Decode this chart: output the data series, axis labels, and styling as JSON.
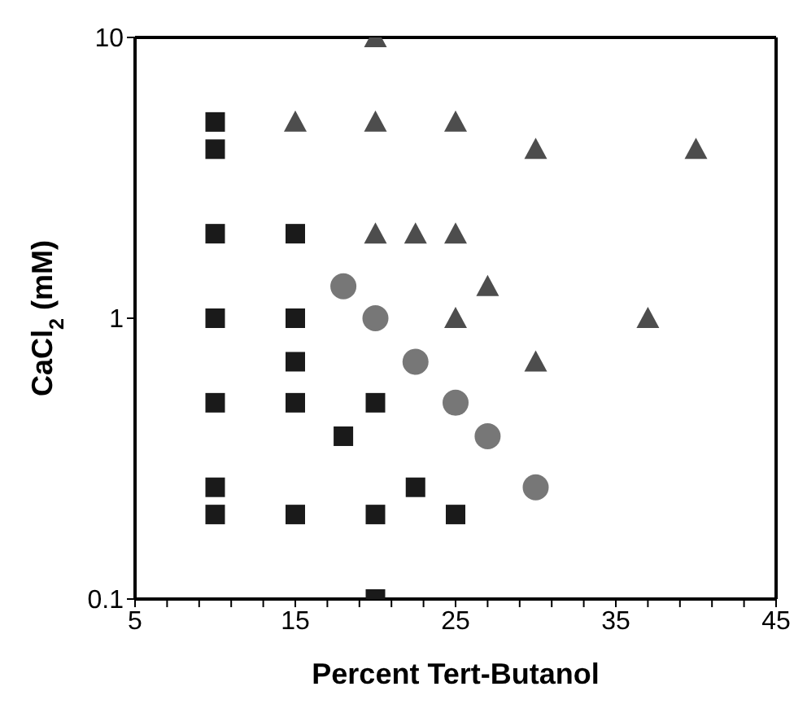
{
  "chart_data": {
    "type": "scatter",
    "xlabel": "Percent Tert-Butanol",
    "ylabel": "CaCl$_{2}$ (mM)",
    "log": "y",
    "grid": false,
    "xlim": [
      5,
      45
    ],
    "xticks": [
      5,
      {
        "value": 7,
        "label": null
      },
      {
        "value": 9,
        "label": null
      },
      {
        "value": 11,
        "label": null
      },
      {
        "value": 13,
        "label": null
      },
      15,
      {
        "value": 17,
        "label": null
      },
      {
        "value": 19,
        "label": null
      },
      {
        "value": 21,
        "label": null
      },
      {
        "value": 23,
        "label": null
      },
      25,
      {
        "value": 27,
        "label": null
      },
      {
        "value": 29,
        "label": null
      },
      {
        "value": 31,
        "label": null
      },
      {
        "value": 33,
        "label": null
      },
      35,
      {
        "value": 37,
        "label": null
      },
      {
        "value": 39,
        "label": null
      },
      {
        "value": 41,
        "label": null
      },
      {
        "value": 43,
        "label": null
      },
      45
    ],
    "ylim": [
      0.1,
      10
    ],
    "yticks": [
      0.1,
      1,
      10
    ],
    "series": [
      {
        "color": "#1a1a1a",
        "marker": "square",
        "x": [
          10,
          10,
          10,
          15,
          10,
          15,
          15,
          10,
          15,
          20,
          18,
          10,
          22.5,
          10,
          15,
          20,
          25,
          20
        ],
        "values": [
          5,
          4,
          2,
          2,
          1,
          1,
          0.7,
          0.5,
          0.5,
          0.5,
          0.38,
          0.25,
          0.25,
          0.2,
          0.2,
          0.2,
          0.2,
          0.1
        ]
      },
      {
        "color": "#4d4d4d",
        "marker": "triangle",
        "x": [
          20,
          15,
          20,
          25,
          30,
          40,
          20,
          22.5,
          25,
          27,
          25,
          37,
          30
        ],
        "values": [
          10,
          5,
          5,
          5,
          4,
          4,
          2,
          2,
          2,
          1.3,
          1,
          1,
          0.7
        ]
      },
      {
        "color": "#777777",
        "marker": "circle",
        "x": [
          18,
          20,
          22.5,
          25,
          27,
          30
        ],
        "values": [
          1.3,
          1,
          0.7,
          0.5,
          0.38,
          0.25
        ]
      }
    ]
  }
}
